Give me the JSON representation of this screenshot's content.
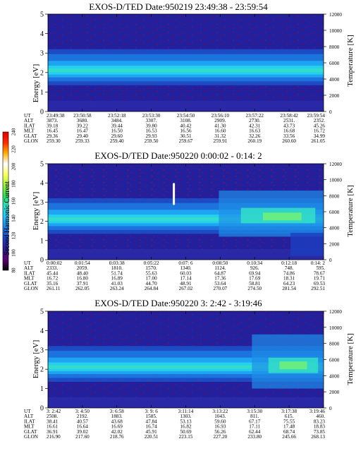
{
  "colorbar": {
    "label": "Second Harmonic Current",
    "ticks": [
      80,
      100,
      120,
      140,
      160,
      180,
      200,
      220,
      240
    ],
    "stops": [
      "#000000",
      "#5a006e",
      "#2a1a8c",
      "#1b3fbf",
      "#1f7fe6",
      "#21c3ff",
      "#29e0c8",
      "#2ee05a",
      "#9cf03a",
      "#ffff60",
      "#ffffff",
      "#ffb000",
      "#ff2a00",
      "#e00000"
    ]
  },
  "axes": {
    "ylabel_left": "Energy [eV]",
    "ylabel_right": "Temperature [K]",
    "energy_ticks": [
      0,
      1,
      2,
      3,
      4,
      5
    ],
    "temp_ticks": [
      0,
      2000,
      4000,
      6000,
      8000,
      10000,
      12000
    ]
  },
  "row_labels": [
    "UT",
    "ALT",
    "ILAT",
    "MLT",
    "GLAT",
    "GLON"
  ],
  "chart_data": [
    {
      "type": "heatmap",
      "title": "EXOS-D/TED   Date:950219  23:49:38 - 23:59:54",
      "ylim": [
        0,
        5
      ],
      "y2lim": [
        0,
        12000
      ],
      "columns": [
        [
          "23:49:38",
          "3873.",
          "39.18",
          "16.45",
          "29.36",
          "259.30"
        ],
        [
          "23:50:58",
          "3680.",
          "39.22",
          "16.47",
          "29.40",
          "259.33"
        ],
        [
          "23:52:18",
          "3484.",
          "39.44",
          "16.50",
          "29.60",
          "259.40"
        ],
        [
          "23:53:30",
          "3307.",
          "39.80",
          "16.53",
          "29.93",
          "259.50"
        ],
        [
          "23:54:50",
          "3108.",
          "40.42",
          "16.56",
          "30.51",
          "259.67"
        ],
        [
          "23:56:10",
          "2909.",
          "41.30",
          "16.60",
          "31.32",
          "259.91"
        ],
        [
          "23:57:22",
          "2730.",
          "42.31",
          "16.63",
          "32.26",
          "260.19"
        ],
        [
          "23:58:42",
          "2531.",
          "43.73",
          "16.68",
          "33.56",
          "260.60"
        ],
        [
          "23:59:54",
          "2352.",
          "45.26",
          "16.72",
          "34.99",
          "261.05"
        ]
      ]
    },
    {
      "type": "heatmap",
      "title": "EXOS-D/TED   Date:950220  0:00:02 - 0:14: 2",
      "ylim": [
        0,
        5
      ],
      "y2lim": [
        0,
        12000
      ],
      "columns": [
        [
          "0:00:02",
          "2333.",
          "45.44",
          "16.72",
          "35.16",
          "261.11"
        ],
        [
          "0:01:54",
          "2059.",
          "48.40",
          "16.80",
          "37.91",
          "262.05"
        ],
        [
          "0:03:38",
          "1810.",
          "51.74",
          "16.89",
          "41.03",
          "263.24"
        ],
        [
          "0:05:22",
          "1570.",
          "55.63",
          "17.00",
          "44.70",
          "264.84"
        ],
        [
          "0:07: 6",
          "1340.",
          "60.03",
          "17.14",
          "48.91",
          "267.02"
        ],
        [
          "0:08:50",
          "1124.",
          "64.87",
          "17.36",
          "53.64",
          "270.07"
        ],
        [
          "0:10:34",
          "926.",
          "69.94",
          "17.69",
          "58.81",
          "274.50"
        ],
        [
          "0:12:18",
          "748.",
          "74.86",
          "18.31",
          "64.23",
          "281.54"
        ],
        [
          "0:14: 2",
          "595.",
          "78.67",
          "19.71",
          "69.53",
          "292.51"
        ]
      ]
    },
    {
      "type": "heatmap",
      "title": "EXOS-D/TED   Date:950220  3: 2:42 - 3:19:46",
      "ylim": [
        0,
        5
      ],
      "y2lim": [
        0,
        12000
      ],
      "columns": [
        [
          "3: 2:42",
          "2508.",
          "38.41",
          "16.61",
          "36.91",
          "216.90"
        ],
        [
          "3: 4:50",
          "2192.",
          "40.57",
          "16.64",
          "39.02",
          "217.60"
        ],
        [
          "3: 6:58",
          "1883.",
          "43.68",
          "16.69",
          "42.02",
          "218.76"
        ],
        [
          "3: 9: 6",
          "1585.",
          "47.84",
          "16.74",
          "45.91",
          "220.51"
        ],
        [
          "3:11:14",
          "1303.",
          "53.13",
          "16.82",
          "50.69",
          "223.15"
        ],
        [
          "3:13:22",
          "1043.",
          "59.60",
          "16.93",
          "56.26",
          "227.20"
        ],
        [
          "3:15:30",
          "811.",
          "67.17",
          "17.11",
          "62.44",
          "233.80"
        ],
        [
          "3:17:38",
          "615.",
          "75.55",
          "17.48",
          "68.74",
          "245.66"
        ],
        [
          "3:19:46",
          "460.",
          "83.23",
          "18.83",
          "73.85",
          "268.13"
        ]
      ]
    }
  ]
}
